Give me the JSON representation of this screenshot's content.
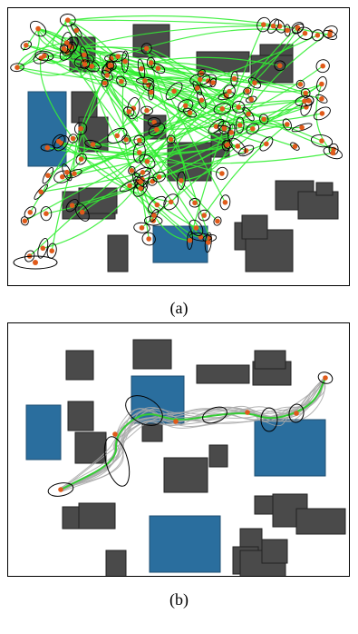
{
  "panels": [
    {
      "caption": "(a)"
    },
    {
      "caption": "(b)"
    }
  ],
  "colors": {
    "obstacle": "#4a4a4a",
    "goal_region": "#2a6e9e",
    "tree_edge": "#33ee33",
    "node": "#e05a1a",
    "covariance_ellipse": "#000000",
    "sample_path": "#a8a8a8",
    "optimal_path": "#33cc33"
  }
}
